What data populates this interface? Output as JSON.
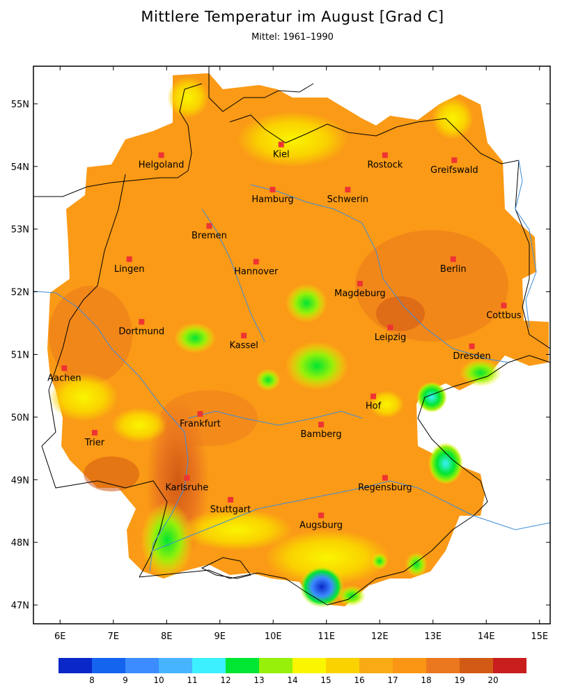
{
  "title": "Mittlere Temperatur im August [Grad C]",
  "subtitle": "Mittel: 1961–1990",
  "map": {
    "lon_range": [
      5.5,
      15.2
    ],
    "lat_range": [
      46.7,
      55.6
    ],
    "lon_ticks": [
      "6E",
      "7E",
      "8E",
      "9E",
      "10E",
      "11E",
      "12E",
      "13E",
      "14E",
      "15E"
    ],
    "lat_ticks": [
      "47N",
      "48N",
      "49N",
      "50N",
      "51N",
      "52N",
      "53N",
      "54N",
      "55N"
    ],
    "city_marker_color": "#ee3333",
    "cities": [
      {
        "name": "Kiel",
        "lon": 10.15,
        "lat": 54.35
      },
      {
        "name": "Helgoland",
        "lon": 7.9,
        "lat": 54.18
      },
      {
        "name": "Rostock",
        "lon": 12.1,
        "lat": 54.18
      },
      {
        "name": "Greifswald",
        "lon": 13.4,
        "lat": 54.1
      },
      {
        "name": "Hamburg",
        "lon": 9.99,
        "lat": 53.63
      },
      {
        "name": "Schwerin",
        "lon": 11.4,
        "lat": 53.63
      },
      {
        "name": "Bremen",
        "lon": 8.8,
        "lat": 53.05
      },
      {
        "name": "Lingen",
        "lon": 7.3,
        "lat": 52.52
      },
      {
        "name": "Hannover",
        "lon": 9.68,
        "lat": 52.48
      },
      {
        "name": "Berlin",
        "lon": 13.38,
        "lat": 52.52
      },
      {
        "name": "Magdeburg",
        "lon": 11.63,
        "lat": 52.13
      },
      {
        "name": "Cottbus",
        "lon": 14.33,
        "lat": 51.78
      },
      {
        "name": "Dortmund",
        "lon": 7.53,
        "lat": 51.52
      },
      {
        "name": "Leipzig",
        "lon": 12.2,
        "lat": 51.43
      },
      {
        "name": "Kassel",
        "lon": 9.45,
        "lat": 51.3
      },
      {
        "name": "Dresden",
        "lon": 13.73,
        "lat": 51.13
      },
      {
        "name": "Aachen",
        "lon": 6.08,
        "lat": 50.78
      },
      {
        "name": "Hof",
        "lon": 11.88,
        "lat": 50.33
      },
      {
        "name": "Frankfurt",
        "lon": 8.63,
        "lat": 50.05
      },
      {
        "name": "Bamberg",
        "lon": 10.9,
        "lat": 49.88
      },
      {
        "name": "Trier",
        "lon": 6.65,
        "lat": 49.75
      },
      {
        "name": "Regensburg",
        "lon": 12.1,
        "lat": 49.03
      },
      {
        "name": "Karlsruhe",
        "lon": 8.38,
        "lat": 49.03
      },
      {
        "name": "Stuttgart",
        "lon": 9.2,
        "lat": 48.68
      },
      {
        "name": "Augsburg",
        "lon": 10.9,
        "lat": 48.43
      }
    ]
  },
  "legend": {
    "colors": [
      "#0a28c8",
      "#1464f0",
      "#3c8cff",
      "#46b4ff",
      "#3cf0ff",
      "#00e632",
      "#96f00a",
      "#faf500",
      "#fad200",
      "#faaa14",
      "#fa9614",
      "#eb781e",
      "#d25a14",
      "#c81e1e"
    ],
    "labels": [
      "8",
      "9",
      "10",
      "11",
      "12",
      "13",
      "14",
      "15",
      "16",
      "17",
      "18",
      "19",
      "20"
    ]
  }
}
